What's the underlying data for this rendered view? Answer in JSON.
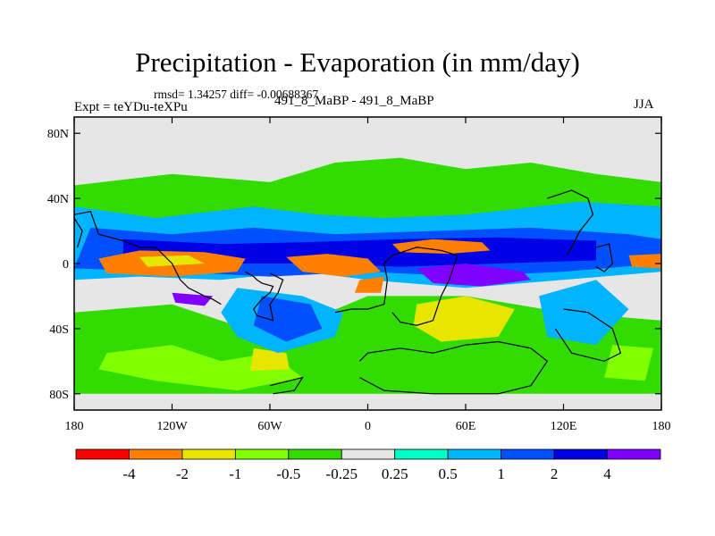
{
  "chart_data": {
    "type": "heatmap",
    "title": "Precipitation - Evaporation (in mm/day)",
    "stats_label": "rmsd= 1.34257 diff= -0.00688367",
    "left_label": "Expt = teYDu-teXPu",
    "center_label": "491_8_MaBP - 491_8_MaBP",
    "right_label": "JJA",
    "x_ticks": [
      "180",
      "120W",
      "60W",
      "0",
      "60E",
      "120E",
      "180"
    ],
    "y_ticks": [
      "80N",
      "40N",
      "0",
      "40S",
      "80S"
    ],
    "x_range_deg": [
      -180,
      180
    ],
    "y_range_deg": [
      -90,
      90
    ],
    "colorbar": {
      "colors": [
        "#ff0000",
        "#ff8000",
        "#e6e600",
        "#80ff00",
        "#32dc00",
        "#e6e6e6",
        "#00ffc8",
        "#00b4ff",
        "#0050ff",
        "#0000e6",
        "#8000ff"
      ],
      "labels": [
        "-4",
        "-2",
        "-1",
        "-0.5",
        "-0.25",
        "0.25",
        "0.5",
        "1",
        "2",
        "4"
      ]
    },
    "regions": [
      {
        "cls": 4,
        "pts": [
          [
            -180,
            48
          ],
          [
            -120,
            55
          ],
          [
            -60,
            50
          ],
          [
            -20,
            62
          ],
          [
            20,
            65
          ],
          [
            60,
            58
          ],
          [
            100,
            62
          ],
          [
            140,
            55
          ],
          [
            180,
            50
          ],
          [
            180,
            -2
          ],
          [
            120,
            -5
          ],
          [
            60,
            -10
          ],
          [
            0,
            -5
          ],
          [
            -60,
            -5
          ],
          [
            -120,
            -2
          ],
          [
            -180,
            -2
          ]
        ]
      },
      {
        "cls": 4,
        "pts": [
          [
            -180,
            -30
          ],
          [
            -120,
            -25
          ],
          [
            -60,
            -45
          ],
          [
            0,
            -20
          ],
          [
            60,
            -20
          ],
          [
            120,
            -30
          ],
          [
            180,
            -35
          ],
          [
            180,
            -80
          ],
          [
            120,
            -80
          ],
          [
            60,
            -80
          ],
          [
            0,
            -80
          ],
          [
            -60,
            -80
          ],
          [
            -120,
            -80
          ],
          [
            -180,
            -80
          ]
        ]
      },
      {
        "cls": 3,
        "pts": [
          [
            -160,
            -55
          ],
          [
            -120,
            -50
          ],
          [
            -90,
            -60
          ],
          [
            -60,
            -55
          ],
          [
            -40,
            -70
          ],
          [
            -80,
            -78
          ],
          [
            -130,
            -72
          ],
          [
            -165,
            -65
          ]
        ]
      },
      {
        "cls": 3,
        "pts": [
          [
            150,
            -50
          ],
          [
            175,
            -52
          ],
          [
            170,
            -72
          ],
          [
            145,
            -70
          ]
        ]
      },
      {
        "cls": 2,
        "pts": [
          [
            -70,
            -52
          ],
          [
            -50,
            -55
          ],
          [
            -48,
            -65
          ],
          [
            -72,
            -66
          ]
        ]
      },
      {
        "cls": 2,
        "pts": [
          [
            30,
            -25
          ],
          [
            60,
            -20
          ],
          [
            90,
            -28
          ],
          [
            80,
            -45
          ],
          [
            45,
            -48
          ],
          [
            28,
            -38
          ]
        ]
      },
      {
        "cls": 7,
        "pts": [
          [
            -180,
            35
          ],
          [
            -130,
            28
          ],
          [
            -70,
            35
          ],
          [
            -30,
            30
          ],
          [
            10,
            28
          ],
          [
            60,
            30
          ],
          [
            130,
            38
          ],
          [
            180,
            35
          ],
          [
            180,
            -5
          ],
          [
            120,
            -10
          ],
          [
            60,
            -15
          ],
          [
            0,
            -10
          ],
          [
            -40,
            -5
          ],
          [
            -90,
            -10
          ],
          [
            -140,
            -8
          ],
          [
            -180,
            -10
          ]
        ]
      },
      {
        "cls": 7,
        "pts": [
          [
            -80,
            -15
          ],
          [
            -40,
            -20
          ],
          [
            -15,
            -30
          ],
          [
            -20,
            -45
          ],
          [
            -55,
            -55
          ],
          [
            -80,
            -45
          ],
          [
            -90,
            -30
          ]
        ]
      },
      {
        "cls": 7,
        "pts": [
          [
            105,
            -20
          ],
          [
            140,
            -10
          ],
          [
            160,
            -28
          ],
          [
            140,
            -50
          ],
          [
            110,
            -45
          ]
        ]
      },
      {
        "cls": 8,
        "pts": [
          [
            -170,
            22
          ],
          [
            -120,
            18
          ],
          [
            -70,
            22
          ],
          [
            -20,
            18
          ],
          [
            40,
            20
          ],
          [
            100,
            22
          ],
          [
            160,
            18
          ],
          [
            180,
            15
          ],
          [
            180,
            0
          ],
          [
            120,
            -5
          ],
          [
            60,
            -8
          ],
          [
            0,
            -5
          ],
          [
            -60,
            -8
          ],
          [
            -120,
            -5
          ],
          [
            -180,
            -3
          ]
        ]
      },
      {
        "cls": 8,
        "pts": [
          [
            -65,
            -20
          ],
          [
            -35,
            -25
          ],
          [
            -28,
            -40
          ],
          [
            -50,
            -48
          ],
          [
            -70,
            -38
          ]
        ]
      },
      {
        "cls": 9,
        "pts": [
          [
            -150,
            15
          ],
          [
            -90,
            12
          ],
          [
            -40,
            13
          ],
          [
            20,
            15
          ],
          [
            80,
            16
          ],
          [
            140,
            14
          ],
          [
            140,
            2
          ],
          [
            80,
            0
          ],
          [
            20,
            -2
          ],
          [
            -40,
            0
          ],
          [
            -100,
            0
          ],
          [
            -150,
            2
          ]
        ]
      },
      {
        "cls": 10,
        "pts": [
          [
            30,
            -3
          ],
          [
            60,
            0
          ],
          [
            95,
            -5
          ],
          [
            100,
            -10
          ],
          [
            70,
            -14
          ],
          [
            40,
            -12
          ]
        ]
      },
      {
        "cls": 10,
        "pts": [
          [
            -120,
            -18
          ],
          [
            -95,
            -20
          ],
          [
            -100,
            -26
          ],
          [
            -118,
            -24
          ]
        ]
      },
      {
        "cls": 1,
        "pts": [
          [
            -165,
            3
          ],
          [
            -140,
            8
          ],
          [
            -100,
            7
          ],
          [
            -75,
            3
          ],
          [
            -80,
            -5
          ],
          [
            -120,
            -8
          ],
          [
            -160,
            -6
          ]
        ]
      },
      {
        "cls": 1,
        "pts": [
          [
            -50,
            4
          ],
          [
            -25,
            6
          ],
          [
            0,
            3
          ],
          [
            8,
            -5
          ],
          [
            -15,
            -8
          ],
          [
            -40,
            -5
          ]
        ]
      },
      {
        "cls": 1,
        "pts": [
          [
            -5,
            -10
          ],
          [
            10,
            -8
          ],
          [
            8,
            -18
          ],
          [
            -8,
            -18
          ]
        ]
      },
      {
        "cls": 1,
        "pts": [
          [
            15,
            12
          ],
          [
            40,
            15
          ],
          [
            70,
            13
          ],
          [
            75,
            8
          ],
          [
            50,
            6
          ],
          [
            20,
            7
          ]
        ]
      },
      {
        "cls": 2,
        "pts": [
          [
            -140,
            4
          ],
          [
            -110,
            5
          ],
          [
            -100,
            0
          ],
          [
            -135,
            -2
          ]
        ]
      },
      {
        "cls": 1,
        "pts": [
          [
            160,
            5
          ],
          [
            180,
            6
          ],
          [
            180,
            -3
          ],
          [
            162,
            -2
          ]
        ]
      }
    ],
    "coastlines": [
      {
        "pts": [
          [
            -180,
            30
          ],
          [
            -170,
            32
          ],
          [
            -165,
            18
          ],
          [
            -150,
            14
          ],
          [
            -140,
            10
          ],
          [
            -130,
            10
          ],
          [
            -120,
            0
          ],
          [
            -115,
            -10
          ],
          [
            -110,
            -15
          ],
          [
            -100,
            -20
          ],
          [
            -95,
            -22
          ],
          [
            -90,
            -25
          ]
        ]
      },
      {
        "pts": [
          [
            -75,
            -5
          ],
          [
            -70,
            -8
          ],
          [
            -68,
            -10
          ],
          [
            -65,
            -12
          ],
          [
            -58,
            -14
          ],
          [
            -60,
            -18
          ],
          [
            -65,
            -22
          ],
          [
            -70,
            -28
          ],
          [
            -68,
            -32
          ],
          [
            -58,
            -35
          ],
          [
            -60,
            -25
          ],
          [
            -55,
            -18
          ],
          [
            -52,
            -10
          ],
          [
            -60,
            -6
          ]
        ]
      },
      {
        "pts": [
          [
            -20,
            -30
          ],
          [
            -10,
            -28
          ],
          [
            0,
            -28
          ],
          [
            10,
            -25
          ],
          [
            12,
            -10
          ],
          [
            10,
            0
          ],
          [
            15,
            5
          ],
          [
            30,
            10
          ],
          [
            45,
            8
          ],
          [
            55,
            5
          ],
          [
            50,
            -10
          ],
          [
            45,
            -20
          ],
          [
            40,
            -35
          ],
          [
            30,
            -38
          ],
          [
            20,
            -36
          ],
          [
            15,
            -30
          ]
        ]
      },
      {
        "pts": [
          [
            -5,
            -60
          ],
          [
            0,
            -55
          ],
          [
            20,
            -52
          ],
          [
            40,
            -55
          ],
          [
            60,
            -50
          ],
          [
            80,
            -48
          ],
          [
            100,
            -52
          ],
          [
            110,
            -60
          ],
          [
            100,
            -75
          ],
          [
            80,
            -80
          ],
          [
            40,
            -80
          ],
          [
            10,
            -78
          ],
          [
            -5,
            -70
          ]
        ]
      },
      {
        "pts": [
          [
            -60,
            -75
          ],
          [
            -40,
            -70
          ],
          [
            -45,
            -78
          ],
          [
            -58,
            -80
          ]
        ]
      },
      {
        "pts": [
          [
            110,
            40
          ],
          [
            125,
            45
          ],
          [
            135,
            40
          ],
          [
            138,
            30
          ],
          [
            130,
            20
          ],
          [
            125,
            10
          ],
          [
            122,
            5
          ]
        ]
      },
      {
        "pts": [
          [
            120,
            -28
          ],
          [
            135,
            -30
          ],
          [
            150,
            -40
          ],
          [
            155,
            -55
          ],
          [
            145,
            -60
          ],
          [
            125,
            -55
          ],
          [
            115,
            -40
          ]
        ]
      },
      {
        "pts": [
          [
            140,
            10
          ],
          [
            148,
            12
          ],
          [
            150,
            0
          ],
          [
            145,
            -5
          ],
          [
            140,
            -2
          ]
        ]
      },
      {
        "pts": [
          [
            -180,
            28
          ],
          [
            -175,
            20
          ],
          [
            -178,
            10
          ]
        ]
      }
    ]
  }
}
